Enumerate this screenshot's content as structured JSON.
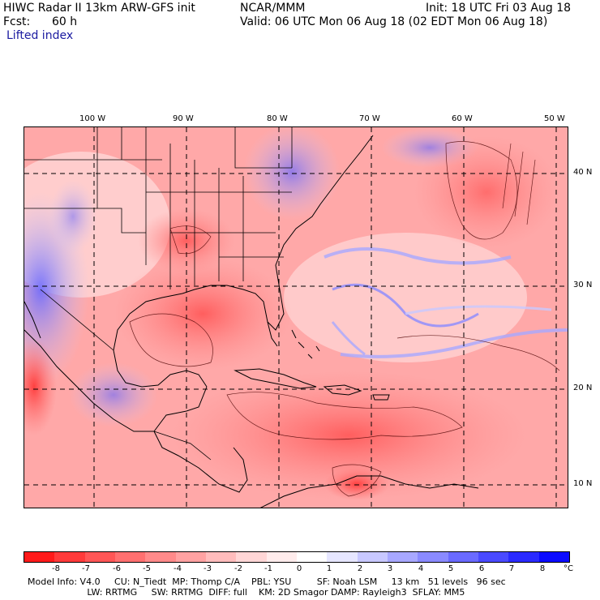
{
  "header": {
    "title_left": "HIWC Radar II 13km ARW-GFS init",
    "org": "NCAR/MMM",
    "init": "Init: 18 UTC Fri 03 Aug 18",
    "fcst_label": "Fcst:",
    "fcst_value": "60 h",
    "valid": "Valid: 06 UTC Mon 06 Aug 18 (02 EDT Mon 06 Aug 18)",
    "field": "Lifted index"
  },
  "longitudes": [
    "100 W",
    "90 W",
    "80 W",
    "70 W",
    "60 W",
    "50 W"
  ],
  "latitudes": [
    "40 N",
    "30 N",
    "20 N",
    "10 N"
  ],
  "colorbar": {
    "ticks": [
      "-8",
      "-7",
      "-6",
      "-5",
      "-4",
      "-3",
      "-2",
      "-1",
      "0",
      "1",
      "2",
      "3",
      "4",
      "5",
      "6",
      "7",
      "8"
    ],
    "unit": "°C",
    "colors": [
      "#ff1a1a",
      "#ff3a3a",
      "#ff5656",
      "#ff7070",
      "#ff8a8a",
      "#ffa2a2",
      "#ffbcbc",
      "#ffd6d6",
      "#ffecec",
      "#ffffff",
      "#e6e6ff",
      "#c8c8ff",
      "#a8a8ff",
      "#8a8aff",
      "#6a6aff",
      "#4a4aff",
      "#2a2aff",
      "#0a0aff"
    ]
  },
  "footer": {
    "line1": "Model Info: V4.0     CU: N_Tiedt  MP: Thomp C/A    PBL: YSU         SF: Noah LSM     13 km   51 levels   96 sec",
    "line2": "                     LW: RRTMG     SW: RRTMG  DIFF: full    KM: 2D Smagor DAMP: Rayleigh3  SFLAY: MM5"
  }
}
